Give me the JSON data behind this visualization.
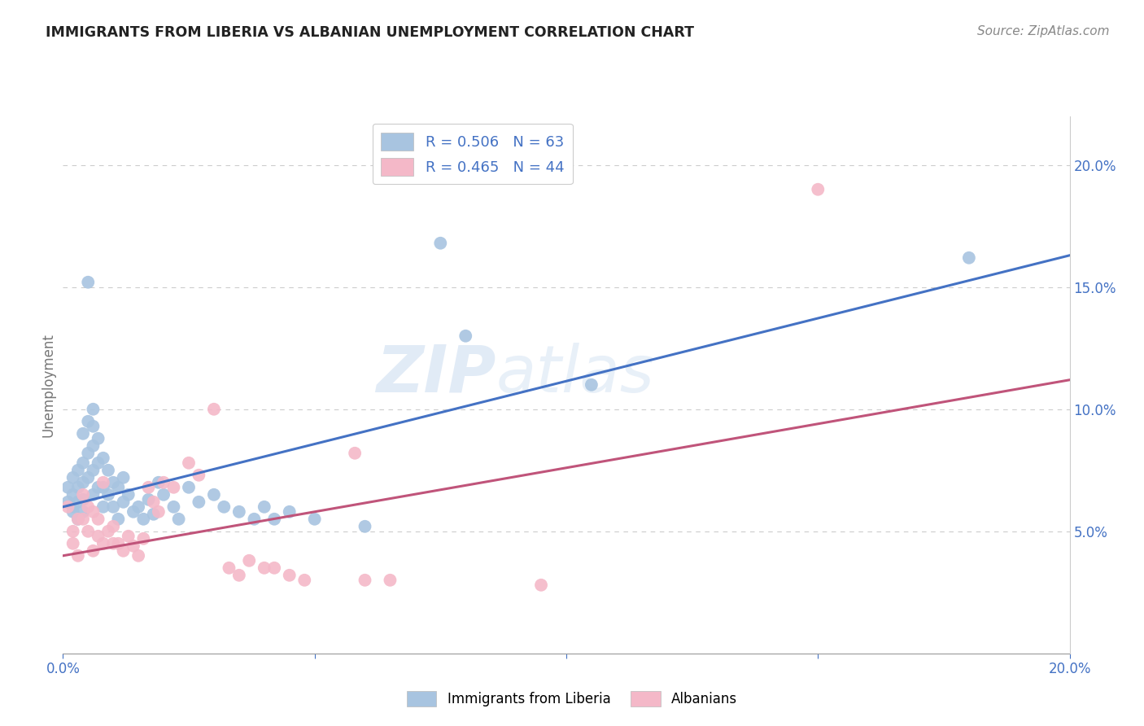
{
  "title": "IMMIGRANTS FROM LIBERIA VS ALBANIAN UNEMPLOYMENT CORRELATION CHART",
  "source": "Source: ZipAtlas.com",
  "ylabel": "Unemployment",
  "legend_entries": [
    {
      "label": "R = 0.506   N = 63",
      "color": "#a8c4e0"
    },
    {
      "label": "R = 0.465   N = 44",
      "color": "#f4b8c8"
    }
  ],
  "liberia_color": "#a8c4e0",
  "albanian_color": "#f4b8c8",
  "liberia_line_color": "#4472c4",
  "albanian_line_color": "#c0547a",
  "watermark_zip": "ZIP",
  "watermark_atlas": "atlas",
  "liberia_points": [
    [
      0.001,
      0.062
    ],
    [
      0.001,
      0.068
    ],
    [
      0.002,
      0.06
    ],
    [
      0.002,
      0.058
    ],
    [
      0.002,
      0.072
    ],
    [
      0.002,
      0.065
    ],
    [
      0.003,
      0.075
    ],
    [
      0.003,
      0.062
    ],
    [
      0.003,
      0.055
    ],
    [
      0.003,
      0.068
    ],
    [
      0.004,
      0.09
    ],
    [
      0.004,
      0.078
    ],
    [
      0.004,
      0.07
    ],
    [
      0.004,
      0.063
    ],
    [
      0.004,
      0.058
    ],
    [
      0.005,
      0.095
    ],
    [
      0.005,
      0.082
    ],
    [
      0.005,
      0.072
    ],
    [
      0.005,
      0.152
    ],
    [
      0.006,
      0.1
    ],
    [
      0.006,
      0.093
    ],
    [
      0.006,
      0.085
    ],
    [
      0.006,
      0.075
    ],
    [
      0.006,
      0.065
    ],
    [
      0.007,
      0.088
    ],
    [
      0.007,
      0.078
    ],
    [
      0.007,
      0.068
    ],
    [
      0.008,
      0.08
    ],
    [
      0.008,
      0.068
    ],
    [
      0.008,
      0.06
    ],
    [
      0.009,
      0.075
    ],
    [
      0.009,
      0.065
    ],
    [
      0.01,
      0.07
    ],
    [
      0.01,
      0.06
    ],
    [
      0.011,
      0.068
    ],
    [
      0.011,
      0.055
    ],
    [
      0.012,
      0.072
    ],
    [
      0.012,
      0.062
    ],
    [
      0.013,
      0.065
    ],
    [
      0.014,
      0.058
    ],
    [
      0.015,
      0.06
    ],
    [
      0.016,
      0.055
    ],
    [
      0.017,
      0.063
    ],
    [
      0.018,
      0.057
    ],
    [
      0.019,
      0.07
    ],
    [
      0.02,
      0.065
    ],
    [
      0.022,
      0.06
    ],
    [
      0.023,
      0.055
    ],
    [
      0.025,
      0.068
    ],
    [
      0.027,
      0.062
    ],
    [
      0.03,
      0.065
    ],
    [
      0.032,
      0.06
    ],
    [
      0.035,
      0.058
    ],
    [
      0.038,
      0.055
    ],
    [
      0.04,
      0.06
    ],
    [
      0.042,
      0.055
    ],
    [
      0.045,
      0.058
    ],
    [
      0.05,
      0.055
    ],
    [
      0.06,
      0.052
    ],
    [
      0.075,
      0.168
    ],
    [
      0.08,
      0.13
    ],
    [
      0.105,
      0.11
    ],
    [
      0.18,
      0.162
    ]
  ],
  "albanian_points": [
    [
      0.001,
      0.06
    ],
    [
      0.002,
      0.05
    ],
    [
      0.002,
      0.045
    ],
    [
      0.003,
      0.055
    ],
    [
      0.003,
      0.04
    ],
    [
      0.004,
      0.065
    ],
    [
      0.004,
      0.055
    ],
    [
      0.005,
      0.05
    ],
    [
      0.005,
      0.06
    ],
    [
      0.006,
      0.042
    ],
    [
      0.006,
      0.058
    ],
    [
      0.007,
      0.048
    ],
    [
      0.007,
      0.055
    ],
    [
      0.008,
      0.045
    ],
    [
      0.008,
      0.07
    ],
    [
      0.009,
      0.05
    ],
    [
      0.01,
      0.045
    ],
    [
      0.01,
      0.052
    ],
    [
      0.011,
      0.045
    ],
    [
      0.012,
      0.042
    ],
    [
      0.013,
      0.048
    ],
    [
      0.014,
      0.044
    ],
    [
      0.015,
      0.04
    ],
    [
      0.016,
      0.047
    ],
    [
      0.017,
      0.068
    ],
    [
      0.018,
      0.062
    ],
    [
      0.019,
      0.058
    ],
    [
      0.02,
      0.07
    ],
    [
      0.022,
      0.068
    ],
    [
      0.025,
      0.078
    ],
    [
      0.027,
      0.073
    ],
    [
      0.03,
      0.1
    ],
    [
      0.033,
      0.035
    ],
    [
      0.035,
      0.032
    ],
    [
      0.037,
      0.038
    ],
    [
      0.04,
      0.035
    ],
    [
      0.042,
      0.035
    ],
    [
      0.045,
      0.032
    ],
    [
      0.048,
      0.03
    ],
    [
      0.058,
      0.082
    ],
    [
      0.06,
      0.03
    ],
    [
      0.065,
      0.03
    ],
    [
      0.095,
      0.028
    ],
    [
      0.15,
      0.19
    ]
  ],
  "liberia_line": [
    [
      0.0,
      0.06
    ],
    [
      0.2,
      0.163
    ]
  ],
  "albanian_line": [
    [
      0.0,
      0.04
    ],
    [
      0.2,
      0.112
    ]
  ],
  "xlim": [
    0.0,
    0.2
  ],
  "ylim": [
    0.0,
    0.22
  ],
  "background_color": "#ffffff",
  "grid_color": "#cccccc",
  "tick_color": "#4472c4",
  "title_color": "#222222",
  "source_color": "#888888",
  "ylabel_color": "#777777"
}
